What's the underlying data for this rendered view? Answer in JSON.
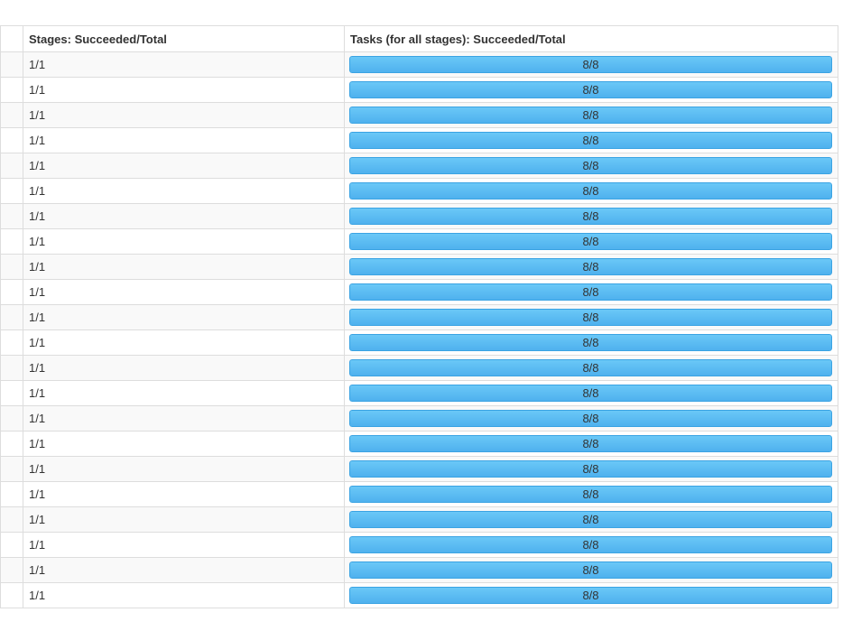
{
  "table": {
    "headers": [
      "",
      "Stages: Succeeded/Total",
      "Tasks (for all stages): Succeeded/Total"
    ],
    "rows": [
      {
        "stages": "1/1",
        "tasks": "8/8",
        "tasks_progress": 1.0
      },
      {
        "stages": "1/1",
        "tasks": "8/8",
        "tasks_progress": 1.0
      },
      {
        "stages": "1/1",
        "tasks": "8/8",
        "tasks_progress": 1.0
      },
      {
        "stages": "1/1",
        "tasks": "8/8",
        "tasks_progress": 1.0
      },
      {
        "stages": "1/1",
        "tasks": "8/8",
        "tasks_progress": 1.0
      },
      {
        "stages": "1/1",
        "tasks": "8/8",
        "tasks_progress": 1.0
      },
      {
        "stages": "1/1",
        "tasks": "8/8",
        "tasks_progress": 1.0
      },
      {
        "stages": "1/1",
        "tasks": "8/8",
        "tasks_progress": 1.0
      },
      {
        "stages": "1/1",
        "tasks": "8/8",
        "tasks_progress": 1.0
      },
      {
        "stages": "1/1",
        "tasks": "8/8",
        "tasks_progress": 1.0
      },
      {
        "stages": "1/1",
        "tasks": "8/8",
        "tasks_progress": 1.0
      },
      {
        "stages": "1/1",
        "tasks": "8/8",
        "tasks_progress": 1.0
      },
      {
        "stages": "1/1",
        "tasks": "8/8",
        "tasks_progress": 1.0
      },
      {
        "stages": "1/1",
        "tasks": "8/8",
        "tasks_progress": 1.0
      },
      {
        "stages": "1/1",
        "tasks": "8/8",
        "tasks_progress": 1.0
      },
      {
        "stages": "1/1",
        "tasks": "8/8",
        "tasks_progress": 1.0
      },
      {
        "stages": "1/1",
        "tasks": "8/8",
        "tasks_progress": 1.0
      },
      {
        "stages": "1/1",
        "tasks": "8/8",
        "tasks_progress": 1.0
      },
      {
        "stages": "1/1",
        "tasks": "8/8",
        "tasks_progress": 1.0
      },
      {
        "stages": "1/1",
        "tasks": "8/8",
        "tasks_progress": 1.0
      },
      {
        "stages": "1/1",
        "tasks": "8/8",
        "tasks_progress": 1.0
      },
      {
        "stages": "1/1",
        "tasks": "8/8",
        "tasks_progress": 1.0
      }
    ]
  },
  "colors": {
    "progress_fill": "#58bbf2",
    "border": "#dddddd",
    "stripe": "#f9f9f9"
  }
}
